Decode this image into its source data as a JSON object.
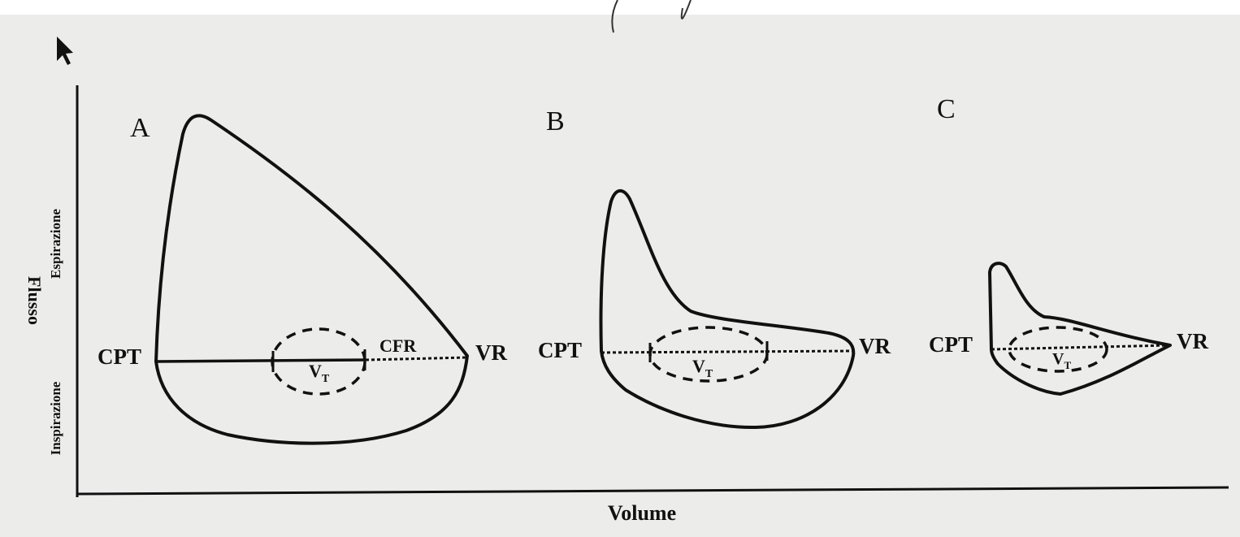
{
  "axes": {
    "y_label": "Flusso",
    "y_upper": "Espirazione",
    "y_lower": "Inspirazione",
    "x_label": "Volume"
  },
  "loops": [
    {
      "label": "A",
      "left": "CPT",
      "right": "VR",
      "middle": "CFR",
      "tidal": "V",
      "tidal_sub": "T"
    },
    {
      "label": "B",
      "left": "CPT",
      "right": "VR",
      "tidal": "V",
      "tidal_sub": "T"
    },
    {
      "label": "C",
      "left": "CPT",
      "right": "VR",
      "tidal": "V",
      "tidal_sub": "T"
    }
  ]
}
